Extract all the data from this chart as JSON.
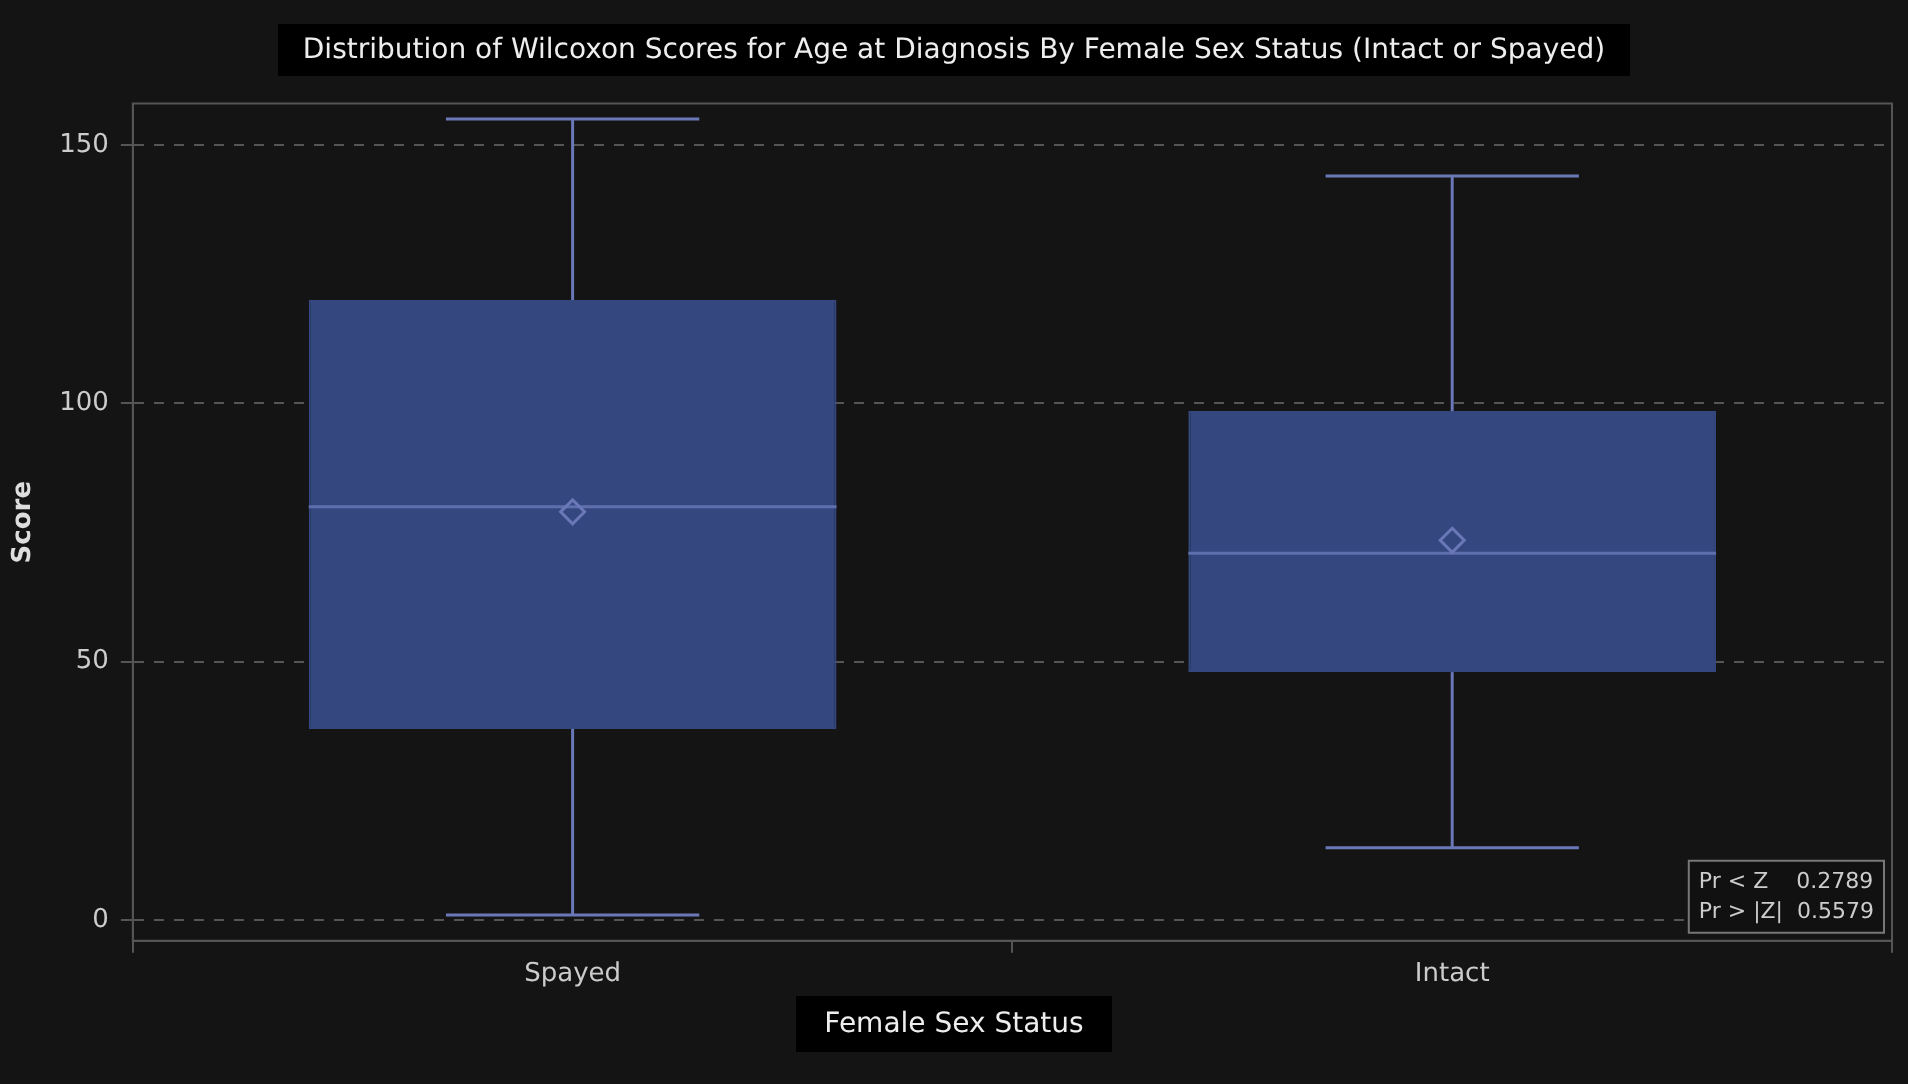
{
  "chart_data": {
    "type": "box",
    "title": "Distribution of Wilcoxon Scores for Age at Diagnosis By Female Sex Status (Intact or Spayed)",
    "xlabel": "Female Sex Status",
    "ylabel": "Score",
    "categories": [
      "Spayed",
      "Intact"
    ],
    "color": "#34487f",
    "boxes": [
      {
        "low": 1,
        "q1": 37,
        "median": 80,
        "q3": 120,
        "high": 155,
        "mean": 79
      },
      {
        "low": 14,
        "q1": 48,
        "median": 71,
        "q3": 98.5,
        "high": 144,
        "mean": 73.5
      }
    ],
    "ylim": [
      -4,
      158
    ],
    "yticks": [
      0,
      50,
      100,
      150
    ],
    "grid": "y",
    "annotations": [
      "Pr < Z    0.2789",
      "Pr > |Z|  0.5579"
    ]
  }
}
